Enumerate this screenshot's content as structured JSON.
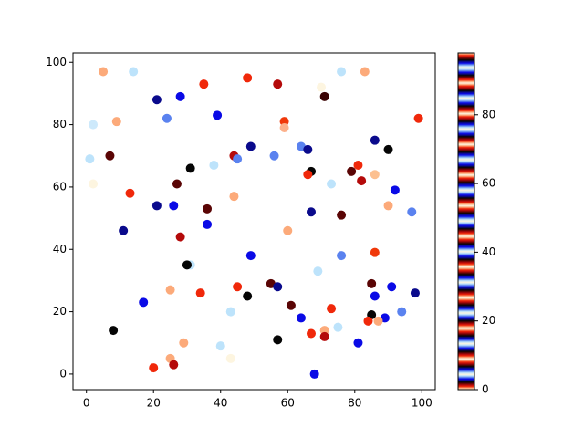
{
  "chart_data": {
    "type": "scatter",
    "xlim": [
      -4,
      104
    ],
    "ylim": [
      -5,
      103
    ],
    "xticks": [
      0,
      20,
      40,
      60,
      80,
      100
    ],
    "yticks": [
      0,
      20,
      40,
      60,
      80,
      100
    ],
    "series": [
      {
        "x": [
          5,
          14,
          2,
          9,
          1,
          7,
          2,
          21,
          28,
          24,
          35,
          39,
          48,
          57,
          59,
          59,
          64,
          71,
          70,
          76,
          83,
          99,
          49,
          44,
          45,
          31,
          38,
          56,
          66,
          67,
          66,
          73,
          79,
          81,
          82,
          86,
          86,
          90,
          92,
          97,
          90,
          13,
          27,
          44,
          21,
          26,
          36,
          36,
          11,
          28,
          60,
          67,
          76,
          49,
          76,
          86,
          31,
          30,
          69,
          25,
          34,
          45,
          48,
          55,
          57,
          61,
          17,
          43,
          64,
          73,
          75,
          71,
          85,
          86,
          91,
          98,
          94,
          85,
          84,
          89,
          87,
          8,
          29,
          40,
          43,
          25,
          26,
          20,
          57,
          67,
          71,
          81,
          68
        ],
        "y": [
          97,
          97,
          80,
          81,
          69,
          70,
          61,
          88,
          89,
          82,
          93,
          83,
          95,
          93,
          81,
          79,
          73,
          89,
          92,
          97,
          97,
          82,
          73,
          70,
          69,
          66,
          67,
          70,
          72,
          65,
          64,
          61,
          65,
          67,
          62,
          75,
          64,
          72,
          59,
          52,
          54,
          58,
          61,
          57,
          54,
          54,
          53,
          48,
          46,
          44,
          46,
          52,
          51,
          38,
          38,
          39,
          35,
          35,
          33,
          27,
          26,
          28,
          25,
          29,
          28,
          22,
          23,
          20,
          18,
          21,
          15,
          14,
          29,
          25,
          28,
          26,
          20,
          19,
          17,
          18,
          17,
          14,
          10,
          9,
          5,
          5,
          3,
          2,
          11,
          13,
          12,
          10,
          0
        ],
        "colors": [
          "#fcaa7a",
          "#bde3fb",
          "#cde9fb",
          "#fcaa7a",
          "#bde3fb",
          "#5a0505",
          "#fdf5e0",
          "#0a0a8c",
          "#0a0ae6",
          "#5a82ef",
          "#f0280a",
          "#0a0ae6",
          "#f0280a",
          "#b40a0a",
          "#f0380a",
          "#fcb08a",
          "#5a82ef",
          "#3a0303",
          "#fdf5e0",
          "#bde3fb",
          "#fcaa7a",
          "#f0280a",
          "#0a0a8c",
          "#b40a0a",
          "#5a82ef",
          "#050505",
          "#bde3fb",
          "#5a82ef",
          "#0a0a8c",
          "#050505",
          "#f0280a",
          "#bde3fb",
          "#5a0505",
          "#f0280a",
          "#b40a0a",
          "#0a0a8c",
          "#fcc090",
          "#050505",
          "#0a0ae6",
          "#5a82ef",
          "#fcaa7a",
          "#f0280a",
          "#5a0505",
          "#fcaa7a",
          "#0a0a8c",
          "#0a0ae6",
          "#5a0505",
          "#0a0ae6",
          "#0a0a8c",
          "#b40a0a",
          "#fcaa7a",
          "#0a0a8c",
          "#5a0505",
          "#0a0ae6",
          "#5a82ef",
          "#f0380a",
          "#bde3fb",
          "#050505",
          "#bde3fb",
          "#fcaa7a",
          "#f0280a",
          "#f0280a",
          "#050505",
          "#5a0505",
          "#0a0a8c",
          "#5a0505",
          "#0a0ae6",
          "#bde3fb",
          "#0a0ae6",
          "#f0280a",
          "#bde3fb",
          "#fcaa7a",
          "#5a0505",
          "#0a0ae6",
          "#0a0ae6",
          "#0a0a8c",
          "#5a82ef",
          "#050505",
          "#f0280a",
          "#0a0ae6",
          "#fcaa7a",
          "#050505",
          "#fcaa7a",
          "#bde3fb",
          "#fdf5e0",
          "#fcaa7a",
          "#b40a0a",
          "#f0280a",
          "#050505",
          "#f0280a",
          "#b40a0a",
          "#0a0ae6",
          "#0a0ae6"
        ]
      }
    ],
    "colorbar": {
      "lim": [
        0,
        98
      ],
      "ticks": [
        0,
        20,
        40,
        60,
        80
      ],
      "colormap": [
        "#fdf5e0",
        "#fcaa7a",
        "#f0280a",
        "#b40a0a",
        "#5a0505",
        "#050505",
        "#0a0a8c",
        "#0a0ae6",
        "#5a82ef",
        "#bde3fb",
        "#fdf5e0"
      ]
    }
  }
}
